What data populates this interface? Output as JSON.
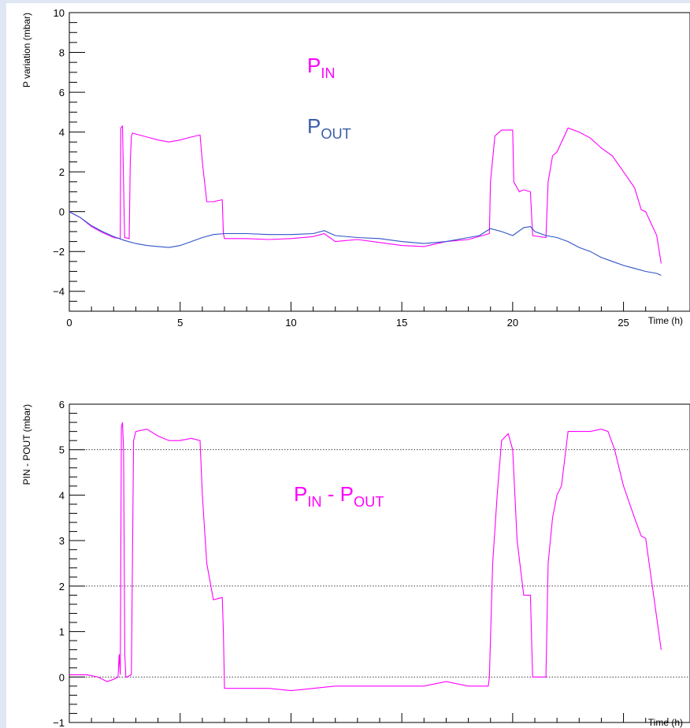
{
  "chart_data": [
    {
      "type": "line",
      "xlabel": "Time (h)",
      "ylabel": "P variation (mbar)",
      "xlim": [
        0,
        28
      ],
      "ylim": [
        -5,
        10
      ],
      "x_ticks": [
        "0",
        "5",
        "10",
        "15",
        "20",
        "25"
      ],
      "y_ticks": [
        "−4",
        "−2",
        "0",
        "2",
        "4",
        "6",
        "8",
        "10"
      ],
      "grid": false,
      "annotations": [
        {
          "base": "P",
          "sub": "IN",
          "color": "#ff00ff"
        },
        {
          "base": "P",
          "sub": "OUT",
          "color": "#3a5ea8"
        }
      ],
      "series": [
        {
          "name": "P_IN",
          "color": "#ff00ff",
          "x": [
            0,
            0.5,
            1,
            1.5,
            2,
            2.3,
            2.32,
            2.4,
            2.48,
            2.5,
            2.7,
            2.75,
            2.8,
            2.85,
            3.0,
            3.5,
            4.0,
            4.5,
            5.0,
            5.5,
            5.9,
            6.0,
            6.2,
            6.5,
            6.9,
            6.95,
            7.0,
            8,
            9,
            10,
            11,
            11.5,
            12,
            13,
            14,
            15,
            16,
            17,
            18,
            18.95,
            19.0,
            19.2,
            19.5,
            19.8,
            20.0,
            20.05,
            20.3,
            20.5,
            20.8,
            20.9,
            21.5,
            21.6,
            21.8,
            22.0,
            22.5,
            23,
            23.5,
            24,
            24.5,
            25,
            25.5,
            25.8,
            26.0,
            26.5,
            26.7
          ],
          "y": [
            0,
            -0.3,
            -0.75,
            -1.05,
            -1.3,
            -1.35,
            4.2,
            4.3,
            -0.5,
            -1.3,
            -1.35,
            2.5,
            3.8,
            3.95,
            3.9,
            3.75,
            3.6,
            3.5,
            3.6,
            3.75,
            3.85,
            2.5,
            0.5,
            0.5,
            0.6,
            -1.1,
            -1.35,
            -1.35,
            -1.4,
            -1.35,
            -1.25,
            -1.1,
            -1.5,
            -1.4,
            -1.55,
            -1.7,
            -1.75,
            -1.5,
            -1.4,
            -1.1,
            1.5,
            3.8,
            4.1,
            4.1,
            4.1,
            1.5,
            1.0,
            1.1,
            1.0,
            -1.2,
            -1.3,
            1.5,
            2.8,
            3.0,
            4.2,
            4.0,
            3.7,
            3.2,
            2.8,
            2.0,
            1.2,
            0.1,
            0.0,
            -1.2,
            -2.6
          ]
        },
        {
          "name": "P_OUT",
          "color": "#2f52c9",
          "x": [
            0,
            0.5,
            1,
            1.5,
            2,
            2.5,
            3,
            3.5,
            4,
            4.5,
            5,
            5.5,
            6,
            6.5,
            7,
            8,
            9,
            10,
            11,
            11.5,
            12,
            13,
            14,
            15,
            16,
            17,
            18,
            18.5,
            19,
            19.5,
            20,
            20.5,
            20.8,
            21,
            21.5,
            22,
            22.5,
            23,
            23.5,
            24,
            24.5,
            25,
            25.5,
            26,
            26.5,
            26.7
          ],
          "y": [
            0,
            -0.3,
            -0.7,
            -1.0,
            -1.25,
            -1.45,
            -1.6,
            -1.7,
            -1.75,
            -1.8,
            -1.7,
            -1.5,
            -1.3,
            -1.15,
            -1.1,
            -1.1,
            -1.15,
            -1.15,
            -1.1,
            -0.95,
            -1.2,
            -1.3,
            -1.35,
            -1.5,
            -1.6,
            -1.5,
            -1.3,
            -1.2,
            -0.85,
            -1.0,
            -1.2,
            -0.8,
            -0.75,
            -1.0,
            -1.2,
            -1.3,
            -1.5,
            -1.8,
            -2.0,
            -2.3,
            -2.5,
            -2.7,
            -2.85,
            -3.0,
            -3.1,
            -3.2
          ]
        }
      ]
    },
    {
      "type": "line",
      "xlabel": "Time (h)",
      "ylabel": "PIN - POUT (mbar)",
      "xlim": [
        0,
        28
      ],
      "ylim": [
        -1,
        6
      ],
      "x_ticks": [
        "0",
        "5",
        "10",
        "15",
        "20",
        "25"
      ],
      "y_ticks": [
        "−1",
        "0",
        "1",
        "2",
        "3",
        "4",
        "5",
        "6"
      ],
      "reference_lines": [
        0,
        2,
        5
      ],
      "grid": false,
      "annotations": [
        {
          "base": "P",
          "sub": "IN",
          "color": "#ff00ff"
        },
        {
          "text": " - ",
          "color": "#ff00ff"
        },
        {
          "base": "P",
          "sub": "OUT",
          "color": "#ff00ff"
        }
      ],
      "series": [
        {
          "name": "PIN - POUT",
          "color": "#ff00ff",
          "x": [
            0,
            0.8,
            1.3,
            1.7,
            2.0,
            2.2,
            2.25,
            2.3,
            2.35,
            2.4,
            2.45,
            2.5,
            2.55,
            2.6,
            2.8,
            2.9,
            3.0,
            3.5,
            4.0,
            4.5,
            5.0,
            5.5,
            5.9,
            6.0,
            6.2,
            6.5,
            6.9,
            6.95,
            7.0,
            8,
            9,
            10,
            11,
            12,
            13,
            14,
            15,
            16,
            17,
            18,
            18.9,
            18.95,
            19.1,
            19.3,
            19.5,
            19.8,
            20.0,
            20.1,
            20.2,
            20.5,
            20.8,
            20.9,
            21.5,
            21.6,
            21.8,
            22.0,
            22.2,
            22.5,
            23,
            23.5,
            24,
            24.3,
            24.6,
            25.0,
            25.5,
            25.8,
            26.0,
            26.5,
            26.7
          ],
          "y": [
            0.05,
            0.05,
            0.0,
            -0.1,
            -0.05,
            0.0,
            0.5,
            0.05,
            5.5,
            5.6,
            5.0,
            0.5,
            0.0,
            0.0,
            0.05,
            5.2,
            5.4,
            5.45,
            5.3,
            5.2,
            5.2,
            5.25,
            5.2,
            4.0,
            2.5,
            1.7,
            1.75,
            1.0,
            -0.25,
            -0.25,
            -0.25,
            -0.3,
            -0.25,
            -0.2,
            -0.2,
            -0.2,
            -0.2,
            -0.2,
            -0.1,
            -0.2,
            -0.2,
            0.0,
            2.5,
            4.0,
            5.2,
            5.35,
            5.0,
            4.0,
            3.0,
            1.8,
            1.8,
            0.0,
            0.0,
            2.5,
            3.5,
            4.0,
            4.2,
            5.4,
            5.4,
            5.4,
            5.45,
            5.4,
            5.0,
            4.2,
            3.5,
            3.1,
            3.05,
            1.3,
            0.6
          ]
        }
      ]
    }
  ]
}
